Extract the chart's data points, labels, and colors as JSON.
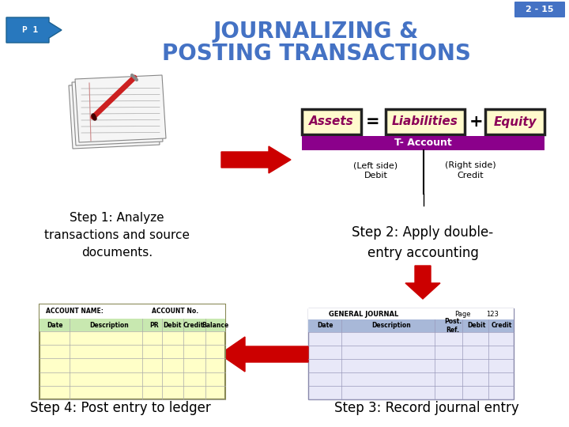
{
  "bg_color": "#ffffff",
  "slide_num_bg": "#4472c4",
  "slide_num_text": "2 - 15",
  "slide_num_color": "#ffffff",
  "p1_arrow_color": "#2878be",
  "p1_text": "P 1",
  "title_line1": "JOURNALIZING &",
  "title_line2": "POSTING TRANSACTIONS",
  "title_color": "#4472c4",
  "assets_bg": "#fffacd",
  "assets_text": "Assets",
  "liabilities_text": "Liabilities",
  "equity_text": "Equity",
  "box_border": "#222222",
  "box_text_color": "#8b0057",
  "equals_text": "=",
  "plus_text": "+",
  "t_account_bg": "#8b008b",
  "t_account_text": "T- Account",
  "red_arrow_color": "#cc0000",
  "step1_text": "Step 1: Analyze\ntransactions and source\ndocuments.",
  "step2_text": "Step 2: Apply double-\nentry accounting",
  "step3_text": "Step 3: Record journal entry",
  "step4_text": "Step 4: Post entry to ledger",
  "ledger_bg": "#ffffc8",
  "ledger_col_bg": "#c8e8b0",
  "journal_bg": "#e8e8f8",
  "journal_header_bg": "#a8b8d8",
  "general_journal_text": "GENERAL JOURNAL",
  "page_text": "Page",
  "page_num": "123"
}
